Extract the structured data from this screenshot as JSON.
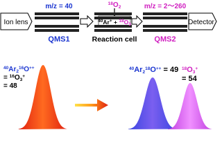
{
  "top": {
    "ion_lens": "Ion lens",
    "detector": "Detector",
    "qms1": {
      "mz": "m/z = 40",
      "label": "QMS1"
    },
    "gas": {
      "sup": "18",
      "base": "O",
      "sub": "2"
    },
    "reaction": {
      "label": "Reaction cell",
      "ar_sup": "40",
      "ar": "Ar",
      "charge": "+",
      "plus": " + ",
      "o_sup": "18",
      "o": "O",
      "o_sub": "3"
    },
    "qms2": {
      "mz": "m/z = 2～260",
      "label": "QMS2"
    }
  },
  "before": {
    "line1": {
      "s1": "40",
      "t1": "Ar",
      "sub": "2",
      "s2": "16",
      "t2": "O",
      "chg": "++"
    },
    "line2": {
      "eq": "= ",
      "s1": "16",
      "t1": "O",
      "sub": "3",
      "chg": "+"
    },
    "line3": "= 48"
  },
  "after": {
    "peak1": {
      "s1": "40",
      "t1": "Ar",
      "sub": "2",
      "s2": "18",
      "t2": "O",
      "chg": "++",
      "val": " = 49"
    },
    "peak2": {
      "s1": "18",
      "t1": "O",
      "sub": "3",
      "chg": "+",
      "val": " = 54"
    }
  }
}
